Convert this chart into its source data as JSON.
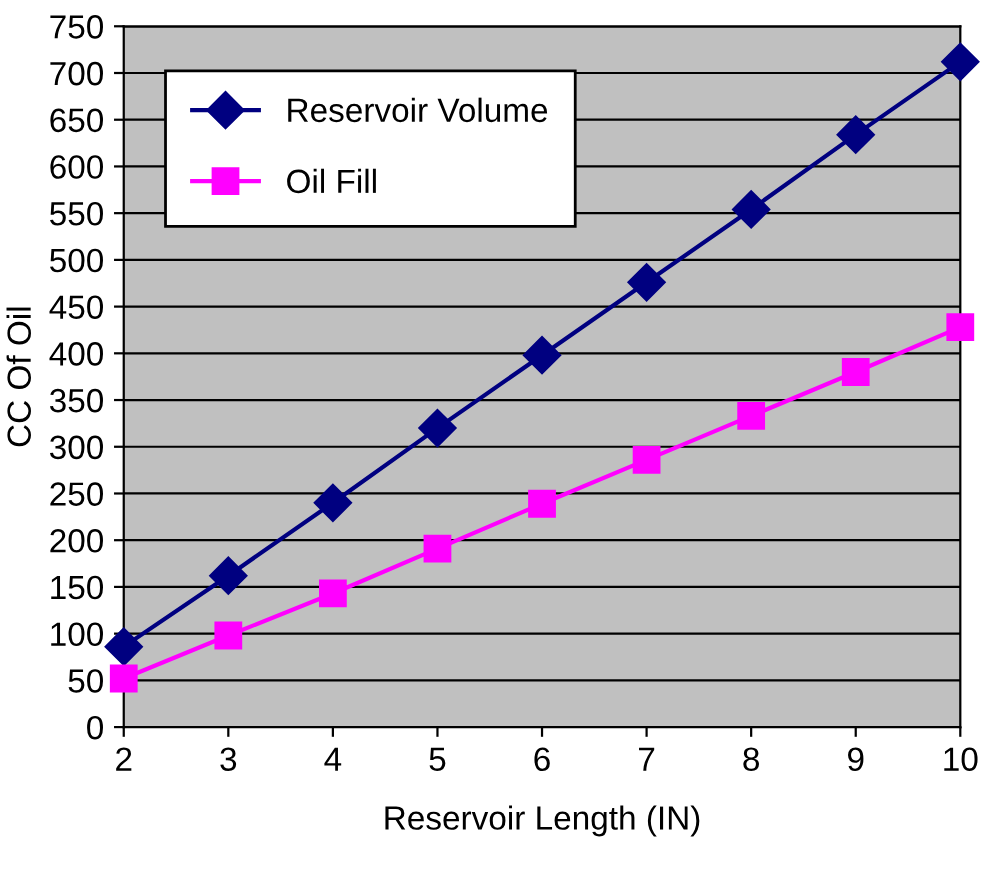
{
  "chart_data": {
    "type": "line",
    "xlabel": "Reservoir Length (IN)",
    "ylabel": "CC Of Oil",
    "x": [
      2,
      3,
      4,
      5,
      6,
      7,
      8,
      9,
      10
    ],
    "series": [
      {
        "name": "Reservoir Volume",
        "color": "#000080",
        "marker": "diamond",
        "values": [
          86,
          162,
          240,
          320,
          398,
          476,
          554,
          634,
          712
        ]
      },
      {
        "name": "Oil Fill",
        "color": "#ff00ff",
        "marker": "square",
        "values": [
          52,
          98,
          143,
          191,
          239,
          286,
          333,
          380,
          428
        ]
      }
    ],
    "xlim": [
      2,
      10
    ],
    "xticks": [
      2,
      3,
      4,
      5,
      6,
      7,
      8,
      9,
      10
    ],
    "ylim": [
      0,
      750
    ],
    "yticks": [
      0,
      50,
      100,
      150,
      200,
      250,
      300,
      350,
      400,
      450,
      500,
      550,
      600,
      650,
      700,
      750
    ],
    "grid": "y",
    "legend": "top left",
    "line_style": "solid"
  }
}
